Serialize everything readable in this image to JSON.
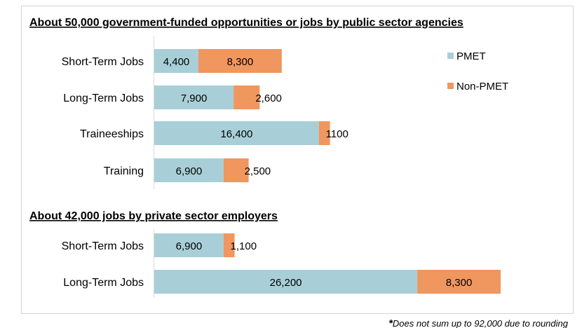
{
  "chart_data": {
    "type": "bar",
    "orientation": "horizontal",
    "stacked": true,
    "legend": {
      "placement": "top-right",
      "entries": [
        {
          "name": "PMET",
          "color": "#a8cfd8"
        },
        {
          "name": "Non-PMET",
          "color": "#f0965f"
        }
      ]
    },
    "grid": false,
    "sections": [
      {
        "title": "About 50,000 government-funded opportunities or jobs by public sector agencies",
        "categories": [
          "Short-Term Jobs",
          "Long-Term Jobs",
          "Traineeships",
          "Training"
        ],
        "series": [
          {
            "name": "PMET",
            "values": [
              4400,
              7900,
              16400,
              6900
            ],
            "labels": [
              "4,400",
              "7,900",
              "16,400",
              "6,900"
            ]
          },
          {
            "name": "Non-PMET",
            "values": [
              8300,
              2600,
              1100,
              2500
            ],
            "labels": [
              "8,300",
              "2,600",
              "1100",
              "2,500"
            ]
          }
        ]
      },
      {
        "title": "About 42,000 jobs by private sector employers",
        "categories": [
          "Short-Term Jobs",
          "Long-Term Jobs"
        ],
        "series": [
          {
            "name": "PMET",
            "values": [
              6900,
              26200
            ],
            "labels": [
              "6,900",
              "26,200"
            ]
          },
          {
            "name": "Non-PMET",
            "values": [
              1100,
              8300
            ],
            "labels": [
              "1,100",
              "8,300"
            ]
          }
        ]
      }
    ],
    "footnote_mark": "*",
    "footnote": "Does not sum up to 92,000 due to rounding"
  }
}
